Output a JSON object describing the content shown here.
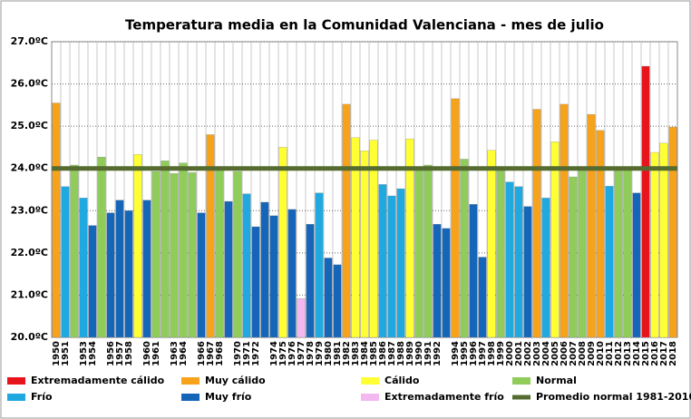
{
  "chart_data": {
    "type": "bar",
    "title": "Temperatura media en la Comunidad Valenciana - mes de julio",
    "categories": [
      "1950",
      "1951",
      null,
      "1953",
      "1954",
      null,
      "1956",
      "1957",
      "1958",
      null,
      "1960",
      "1961",
      null,
      "1963",
      "1964",
      null,
      "1966",
      "1967",
      "1968",
      null,
      "1970",
      "1971",
      "1972",
      null,
      "1974",
      "1975",
      "1976",
      "1977",
      "1978",
      "1979",
      "1980",
      "1981",
      "1982",
      "1983",
      "1984",
      "1985",
      "1986",
      "1987",
      "1988",
      "1989",
      "1990",
      "1991",
      "1992",
      null,
      "1994",
      "1995",
      "1996",
      "1997",
      "1998",
      "1999",
      "2000",
      "2001",
      "2002",
      "2003",
      "2004",
      "2005",
      "2006",
      "2007",
      "2008",
      "2009",
      "2010",
      "2011",
      "2012",
      "2013",
      "2014",
      "2015",
      "2016",
      "2017",
      "2018"
    ],
    "values": [
      25.55,
      23.57,
      24.08,
      23.3,
      22.65,
      24.27,
      22.95,
      23.25,
      23.0,
      24.33,
      23.25,
      23.93,
      24.18,
      23.88,
      24.13,
      23.9,
      22.95,
      24.8,
      24.02,
      23.22,
      23.93,
      23.4,
      22.62,
      23.2,
      22.88,
      24.5,
      23.03,
      20.92,
      22.68,
      23.42,
      21.88,
      21.72,
      25.52,
      24.73,
      24.42,
      24.67,
      23.62,
      23.35,
      23.52,
      24.7,
      24.03,
      24.08,
      22.68,
      22.58,
      25.65,
      24.22,
      23.15,
      21.9,
      24.43,
      24.02,
      23.68,
      23.57,
      23.1,
      25.4,
      23.3,
      24.63,
      25.52,
      23.8,
      23.95,
      25.28,
      24.9,
      23.58,
      24.02,
      24.02,
      23.42,
      26.42,
      24.38,
      24.6,
      24.98
    ],
    "colors": [
      "#f7a21b",
      "#1fa9e0",
      "#8fcc5a",
      "#1fa9e0",
      "#1565b8",
      "#8fcc5a",
      "#1565b8",
      "#1565b8",
      "#1565b8",
      "#ffff33",
      "#1565b8",
      "#8fcc5a",
      "#8fcc5a",
      "#8fcc5a",
      "#8fcc5a",
      "#8fcc5a",
      "#1565b8",
      "#f7a21b",
      "#8fcc5a",
      "#1565b8",
      "#8fcc5a",
      "#1fa9e0",
      "#1565b8",
      "#1565b8",
      "#1565b8",
      "#ffff33",
      "#1565b8",
      "#f4b8f0",
      "#1565b8",
      "#1fa9e0",
      "#1565b8",
      "#1565b8",
      "#f7a21b",
      "#ffff33",
      "#ffff33",
      "#ffff33",
      "#1fa9e0",
      "#1fa9e0",
      "#1fa9e0",
      "#ffff33",
      "#8fcc5a",
      "#8fcc5a",
      "#1565b8",
      "#1565b8",
      "#f7a21b",
      "#8fcc5a",
      "#1565b8",
      "#1565b8",
      "#ffff33",
      "#8fcc5a",
      "#1fa9e0",
      "#1fa9e0",
      "#1565b8",
      "#f7a21b",
      "#1fa9e0",
      "#ffff33",
      "#f7a21b",
      "#8fcc5a",
      "#8fcc5a",
      "#f7a21b",
      "#f7a21b",
      "#1fa9e0",
      "#8fcc5a",
      "#8fcc5a",
      "#1565b8",
      "#e8141c",
      "#ffff33",
      "#ffff33",
      "#f7a21b"
    ],
    "ylim": [
      20,
      27
    ],
    "yticks": [
      {
        "value": 20,
        "label": "20.0ºC"
      },
      {
        "value": 21,
        "label": "21.0ºC"
      },
      {
        "value": 22,
        "label": "22.0ºC"
      },
      {
        "value": 23,
        "label": "23.0ºC"
      },
      {
        "value": 24,
        "label": "24.0ºC"
      },
      {
        "value": 25,
        "label": "25.0ºC"
      },
      {
        "value": 26,
        "label": "26.0ºC"
      },
      {
        "value": 27,
        "label": "27.0ºC"
      }
    ],
    "grid": true,
    "legend": [
      {
        "name": "Extremadamente cálido",
        "color": "#e8141c"
      },
      {
        "name": "Muy cálido",
        "color": "#f7a21b"
      },
      {
        "name": "Cálido",
        "color": "#ffff33"
      },
      {
        "name": "Normal",
        "color": "#8fcc5a"
      },
      {
        "name": "Frío",
        "color": "#1fa9e0"
      },
      {
        "name": "Muy frío",
        "color": "#1565b8"
      },
      {
        "name": "Extremadamente frío",
        "color": "#f4b8f0"
      }
    ],
    "average": {
      "name": "Promedio normal 1981-2010",
      "value": 24.0,
      "color": "#556b2f"
    }
  }
}
